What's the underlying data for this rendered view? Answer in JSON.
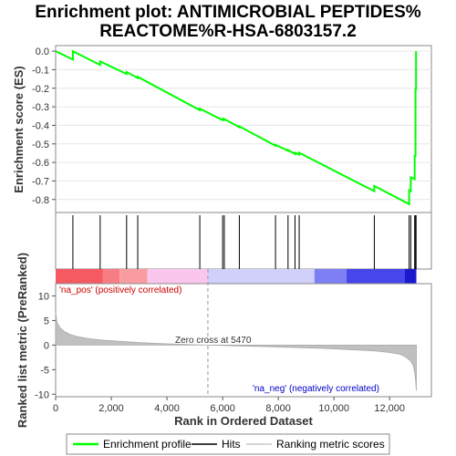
{
  "chart_data": {
    "type": "line",
    "title_line1": "Enrichment plot: ANTIMICROBIAL PEPTIDES%",
    "title_line2": "REACTOME%R-HSA-6803157.2",
    "es_panel": {
      "ylabel": "Enrichment score (ES)",
      "ylim": [
        -0.87,
        0.03
      ],
      "yticks": [
        0.0,
        -0.1,
        -0.2,
        -0.3,
        -0.4,
        -0.5,
        -0.6,
        -0.7,
        -0.8
      ],
      "ytick_labels": [
        "0.0",
        "-0.1",
        "-0.2",
        "-0.3",
        "-0.4",
        "-0.5",
        "-0.6",
        "-0.7",
        "-0.8"
      ],
      "series": [
        {
          "name": "Enrichment profile",
          "color": "#00ff00",
          "x": [
            0,
            620,
            620,
            1600,
            1600,
            2550,
            2550,
            2950,
            2950,
            5180,
            5180,
            6000,
            6000,
            6060,
            6060,
            6600,
            6600,
            7900,
            7900,
            8350,
            8350,
            8600,
            8600,
            8750,
            8750,
            11450,
            11450,
            12700,
            12700,
            12760,
            12760,
            12900,
            12900,
            12930,
            12930,
            12950,
            12950
          ],
          "y": [
            0.0,
            -0.045,
            0.0,
            -0.075,
            -0.055,
            -0.123,
            -0.112,
            -0.145,
            -0.138,
            -0.318,
            -0.31,
            -0.372,
            -0.365,
            -0.37,
            -0.366,
            -0.41,
            -0.405,
            -0.51,
            -0.505,
            -0.537,
            -0.533,
            -0.555,
            -0.548,
            -0.557,
            -0.548,
            -0.755,
            -0.727,
            -0.825,
            -0.75,
            -0.755,
            -0.68,
            -0.69,
            -0.56,
            -0.57,
            -0.2,
            -0.21,
            0.0
          ]
        }
      ]
    },
    "hits": {
      "name": "Hits",
      "x": [
        620,
        1600,
        2550,
        2950,
        5180,
        6000,
        6060,
        6600,
        7900,
        8350,
        8600,
        8750,
        11450,
        12700,
        12760,
        12900,
        12930,
        12950
      ]
    },
    "color_bar": {
      "segments": [
        {
          "x0": 0,
          "x1": 1700,
          "color": "#f55a63"
        },
        {
          "x0": 1700,
          "x1": 2300,
          "color": "#f77c84"
        },
        {
          "x0": 2300,
          "x1": 3300,
          "color": "#f99ca2"
        },
        {
          "x0": 3300,
          "x1": 5470,
          "color": "#fbc6ee"
        },
        {
          "x0": 5470,
          "x1": 9300,
          "color": "#d0d0fb"
        },
        {
          "x0": 9300,
          "x1": 10450,
          "color": "#7f7ff5"
        },
        {
          "x0": 10450,
          "x1": 12550,
          "color": "#4646ea"
        },
        {
          "x0": 12550,
          "x1": 12960,
          "color": "#1a1acc"
        }
      ]
    },
    "ranked_panel": {
      "ylabel": "Ranked list metric (PreRanked)",
      "ylim": [
        -10.5,
        12.5
      ],
      "yticks": [
        10,
        5,
        0,
        -5,
        -10
      ],
      "ytick_labels": [
        "10",
        "5",
        "0",
        "-5",
        "-10"
      ],
      "series": [
        {
          "name": "Ranking metric scores",
          "color": "#b0b0b0",
          "x": [
            0,
            50,
            150,
            300,
            500,
            800,
            1200,
            1700,
            2300,
            3000,
            4000,
            5000,
            5470,
            6500,
            8000,
            9500,
            10500,
            11500,
            12000,
            12400,
            12600,
            12750,
            12850,
            12900,
            12940,
            12960
          ],
          "y": [
            6.7,
            4.6,
            3.6,
            2.8,
            2.2,
            1.7,
            1.3,
            1.0,
            0.75,
            0.5,
            0.25,
            0.08,
            0.0,
            -0.15,
            -0.4,
            -0.65,
            -0.9,
            -1.2,
            -1.5,
            -1.9,
            -2.5,
            -3.2,
            -4.2,
            -5.5,
            -7.5,
            -9.3
          ]
        }
      ],
      "annotations": {
        "na_pos": "'na_pos' (positively correlated)",
        "na_neg": "'na_neg' (negatively correlated)",
        "zero_cross": "Zero cross at 5470"
      },
      "zero_cross_x": 5470
    },
    "xaxis": {
      "label": "Rank in Ordered Dataset",
      "xlim": [
        0,
        13500
      ],
      "ticks": [
        0,
        2000,
        4000,
        6000,
        8000,
        10000,
        12000
      ],
      "tick_labels": [
        "0",
        "2,000",
        "4,000",
        "6,000",
        "8,000",
        "10,000",
        "12,000"
      ]
    },
    "legend": {
      "position": "bottom",
      "items": [
        {
          "label": "Enrichment profile",
          "color": "#00ff00"
        },
        {
          "label": "Hits",
          "color": "#000000"
        },
        {
          "label": "Ranking metric scores",
          "color": "#c8c8c8"
        }
      ]
    },
    "colors": {
      "pos_annotation": "#cc0000",
      "neg_annotation": "#0000cc",
      "zero_line": "#999999"
    }
  }
}
